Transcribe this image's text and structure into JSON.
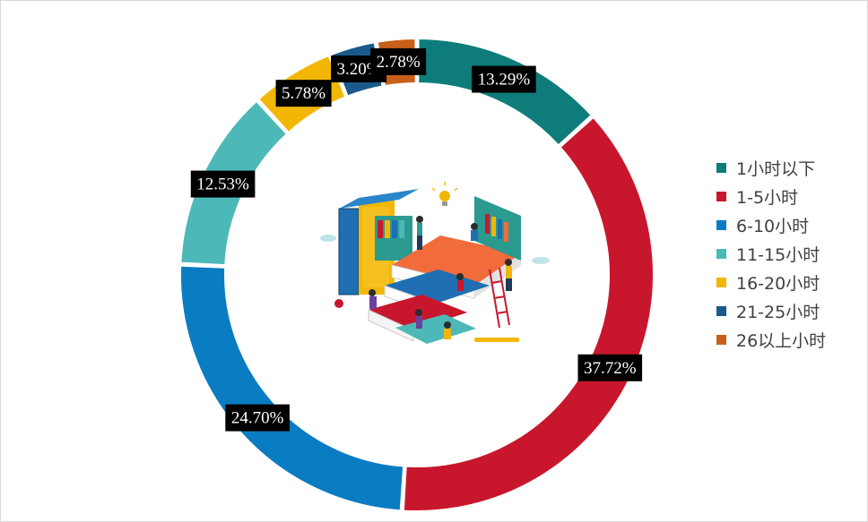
{
  "chart_data": {
    "type": "pie",
    "variant": "donut",
    "legend_position": "right",
    "categories": [
      "1小时以下",
      "1-5小时",
      "6-10小时",
      "11-15小时",
      "16-20小时",
      "21-25小时",
      "26以上小时"
    ],
    "values": [
      13.29,
      37.72,
      24.7,
      12.53,
      5.78,
      3.2,
      2.78
    ],
    "data_labels": [
      "13.29%",
      "37.72%",
      "24.70%",
      "12.53%",
      "5.78%",
      "3.20%",
      "2.78%"
    ],
    "colors": [
      "#0E7C7B",
      "#C8172C",
      "#0A7CC1",
      "#4DB8B8",
      "#F2B705",
      "#1A5A8A",
      "#C8601A"
    ],
    "center_image": "education-books-illustration"
  }
}
